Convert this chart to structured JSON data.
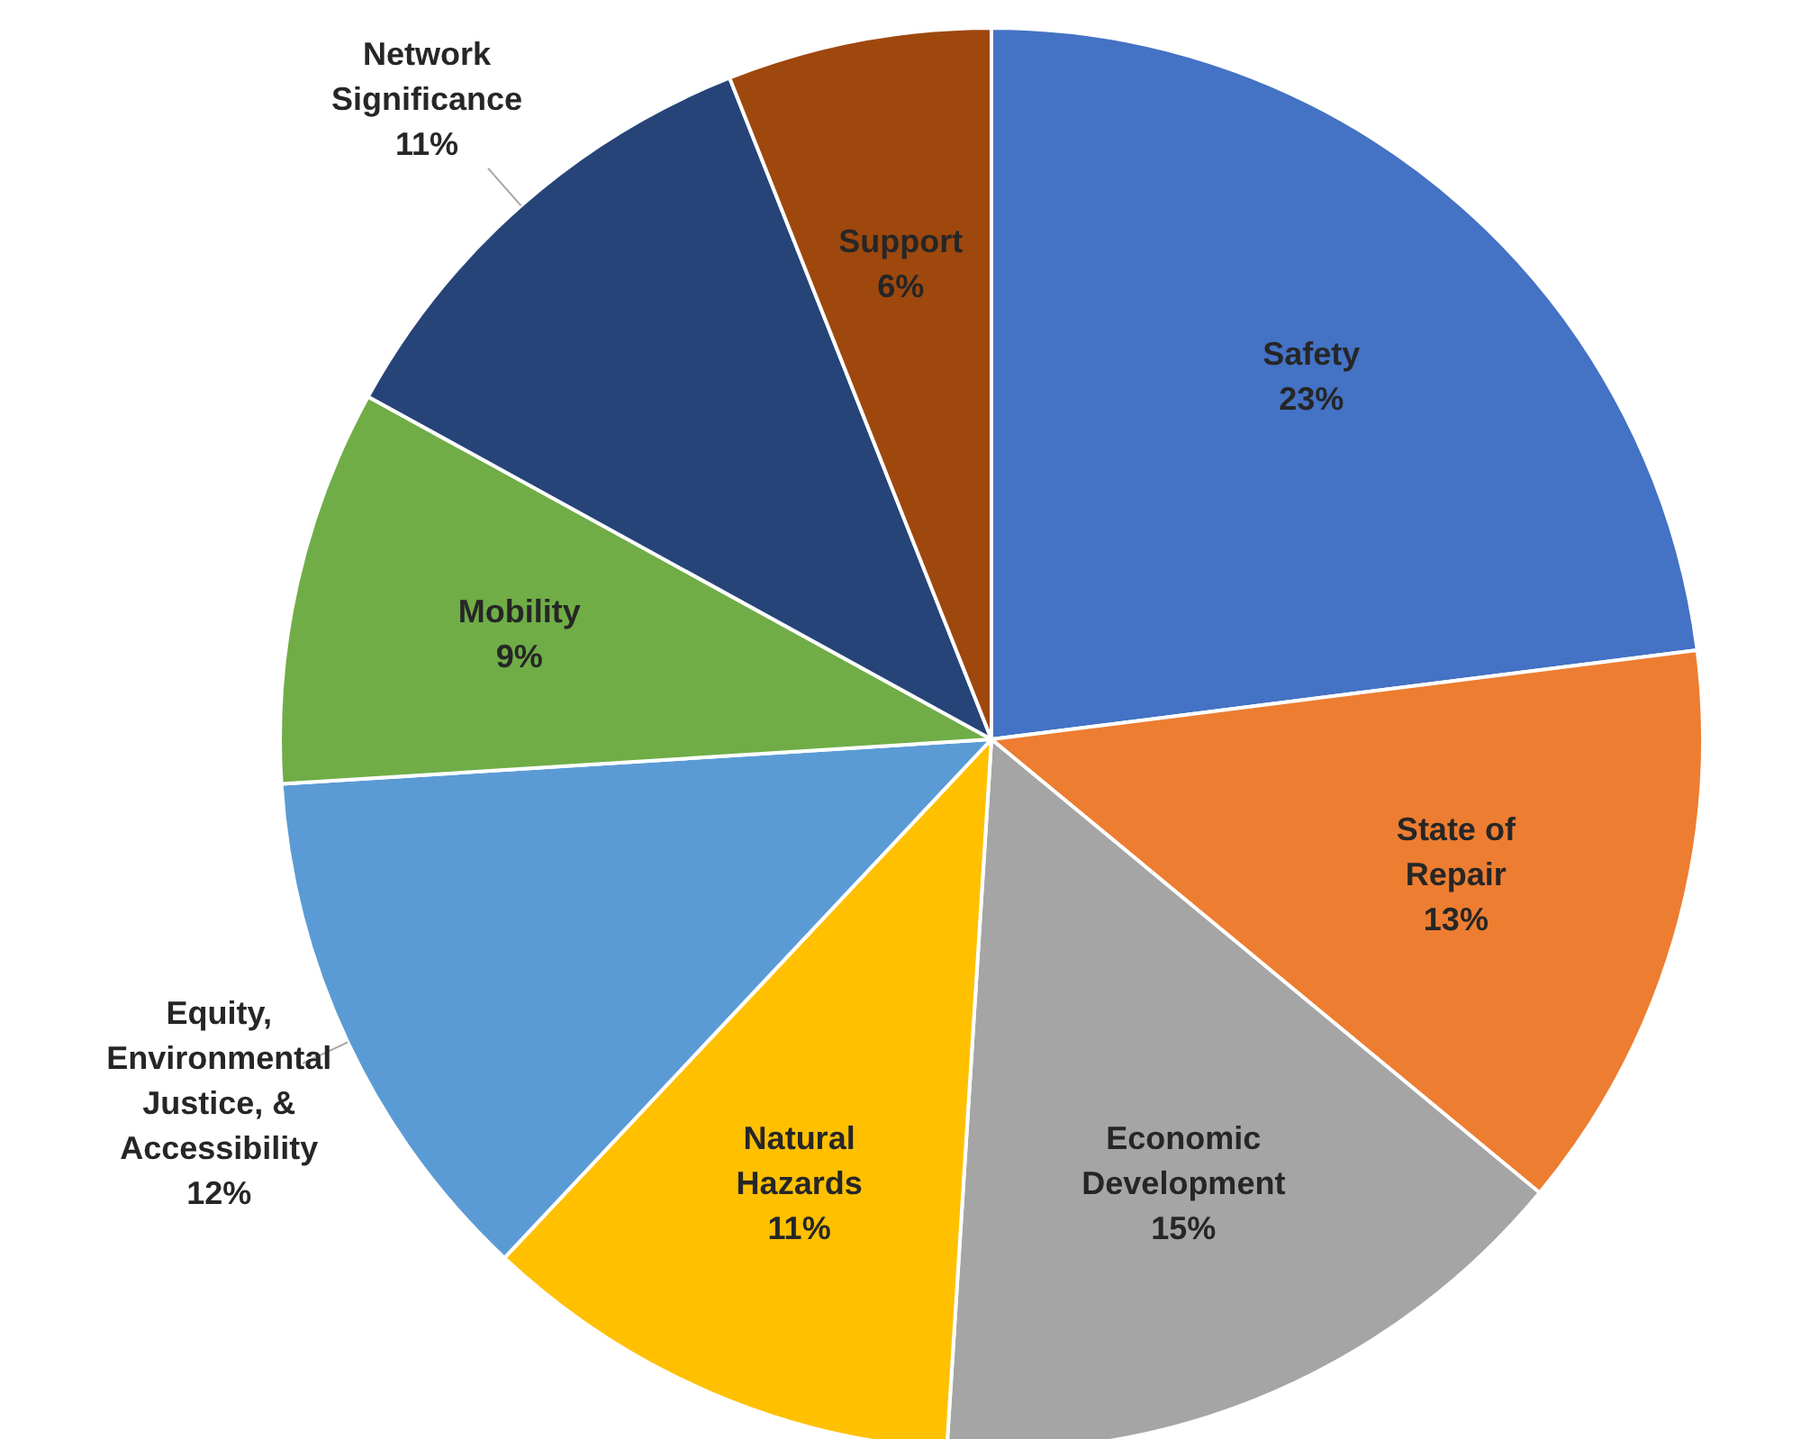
{
  "chart_data": {
    "type": "pie",
    "categories": [
      "Safety",
      "State of Repair",
      "Economic Development",
      "Natural Hazards",
      "Equity, Environmental Justice, & Accessibility",
      "Mobility",
      "Network Significance",
      "Support"
    ],
    "values": [
      23,
      13,
      15,
      11,
      12,
      9,
      11,
      6
    ],
    "colors": [
      "#4472c4",
      "#ed7d31",
      "#a5a5a5",
      "#ffc000",
      "#5b9bd5",
      "#70ad47",
      "#264478",
      "#9e480e"
    ],
    "value_labels": [
      "23%",
      "13%",
      "15%",
      "11%",
      "12%",
      "9%",
      "11%",
      "6%"
    ]
  }
}
